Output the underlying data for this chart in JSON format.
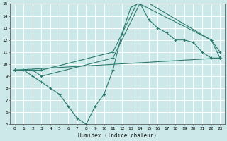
{
  "xlabel": "Humidex (Indice chaleur)",
  "xlim": [
    -0.5,
    23.5
  ],
  "ylim": [
    5,
    15
  ],
  "xticks": [
    0,
    1,
    2,
    3,
    4,
    5,
    6,
    7,
    8,
    9,
    10,
    11,
    12,
    13,
    14,
    15,
    16,
    17,
    18,
    19,
    20,
    21,
    22,
    23
  ],
  "yticks": [
    5,
    6,
    7,
    8,
    9,
    10,
    11,
    12,
    13,
    14,
    15
  ],
  "bg_color": "#cce8e8",
  "grid_color": "#ffffff",
  "line_color": "#2a7a6e",
  "lines": [
    {
      "x": [
        0,
        1,
        2,
        3,
        4,
        5,
        6,
        7,
        8,
        9,
        10,
        11,
        12,
        13,
        14,
        15,
        16,
        17,
        18,
        19,
        20,
        21,
        22,
        23
      ],
      "y": [
        9.5,
        9.5,
        9.0,
        8.5,
        8.0,
        7.5,
        6.5,
        5.5,
        5.0,
        6.5,
        7.5,
        9.5,
        12.5,
        14.7,
        15.1,
        13.7,
        13.0,
        12.6,
        12.0,
        12.0,
        11.8,
        11.0,
        10.5,
        10.5
      ]
    },
    {
      "x": [
        0,
        2,
        3,
        11,
        14,
        22,
        23
      ],
      "y": [
        9.5,
        9.5,
        9.5,
        11.0,
        15.5,
        12.0,
        11.0
      ]
    },
    {
      "x": [
        0,
        2,
        3,
        11,
        14,
        22,
        23
      ],
      "y": [
        9.5,
        9.5,
        9.0,
        10.5,
        15.0,
        12.0,
        10.5
      ]
    },
    {
      "x": [
        0,
        23
      ],
      "y": [
        9.5,
        10.5
      ]
    }
  ]
}
